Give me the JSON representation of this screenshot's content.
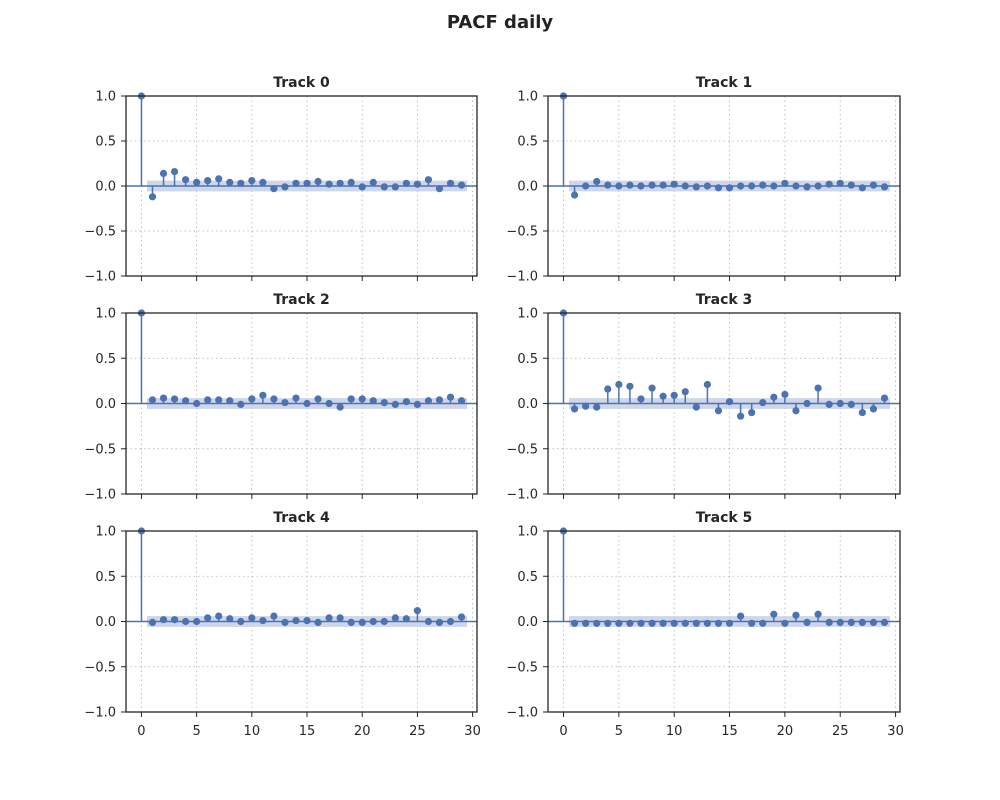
{
  "figure": {
    "title": "PACF daily"
  },
  "chart_data": [
    {
      "type": "stem",
      "title": "Track 0",
      "xlim": [
        -1.4,
        30.4
      ],
      "ylim": [
        -1.0,
        1.0
      ],
      "xticks": [
        0,
        5,
        10,
        15,
        20,
        25,
        30
      ],
      "yticks": [
        -1.0,
        -0.5,
        0.0,
        0.5,
        1.0
      ],
      "grid": true,
      "confidence_band": [
        -0.06,
        0.06
      ],
      "x": [
        0,
        1,
        2,
        3,
        4,
        5,
        6,
        7,
        8,
        9,
        10,
        11,
        12,
        13,
        14,
        15,
        16,
        17,
        18,
        19,
        20,
        21,
        22,
        23,
        24,
        25,
        26,
        27,
        28,
        29
      ],
      "y": [
        1.0,
        -0.12,
        0.14,
        0.16,
        0.07,
        0.04,
        0.06,
        0.08,
        0.04,
        0.03,
        0.06,
        0.04,
        -0.03,
        -0.01,
        0.03,
        0.03,
        0.05,
        0.02,
        0.03,
        0.04,
        -0.01,
        0.04,
        -0.01,
        -0.01,
        0.03,
        0.02,
        0.07,
        -0.03,
        0.03,
        0.01
      ]
    },
    {
      "type": "stem",
      "title": "Track 1",
      "xlim": [
        -1.4,
        30.4
      ],
      "ylim": [
        -1.0,
        1.0
      ],
      "xticks": [
        0,
        5,
        10,
        15,
        20,
        25,
        30
      ],
      "yticks": [
        -1.0,
        -0.5,
        0.0,
        0.5,
        1.0
      ],
      "grid": true,
      "confidence_band": [
        -0.06,
        0.06
      ],
      "x": [
        0,
        1,
        2,
        3,
        4,
        5,
        6,
        7,
        8,
        9,
        10,
        11,
        12,
        13,
        14,
        15,
        16,
        17,
        18,
        19,
        20,
        21,
        22,
        23,
        24,
        25,
        26,
        27,
        28,
        29
      ],
      "y": [
        1.0,
        -0.1,
        0.0,
        0.05,
        0.01,
        0.0,
        0.01,
        0.0,
        0.01,
        0.01,
        0.02,
        0.0,
        -0.01,
        0.0,
        -0.02,
        -0.02,
        0.0,
        0.0,
        0.01,
        0.0,
        0.03,
        0.0,
        -0.01,
        0.0,
        0.02,
        0.03,
        0.01,
        -0.02,
        0.01,
        -0.01
      ]
    },
    {
      "type": "stem",
      "title": "Track 2",
      "xlim": [
        -1.4,
        30.4
      ],
      "ylim": [
        -1.0,
        1.0
      ],
      "xticks": [
        0,
        5,
        10,
        15,
        20,
        25,
        30
      ],
      "yticks": [
        -1.0,
        -0.5,
        0.0,
        0.5,
        1.0
      ],
      "grid": true,
      "confidence_band": [
        -0.06,
        0.06
      ],
      "x": [
        0,
        1,
        2,
        3,
        4,
        5,
        6,
        7,
        8,
        9,
        10,
        11,
        12,
        13,
        14,
        15,
        16,
        17,
        18,
        19,
        20,
        21,
        22,
        23,
        24,
        25,
        26,
        27,
        28,
        29
      ],
      "y": [
        1.0,
        0.04,
        0.06,
        0.05,
        0.03,
        0.0,
        0.04,
        0.04,
        0.03,
        -0.01,
        0.05,
        0.09,
        0.05,
        0.01,
        0.06,
        0.0,
        0.05,
        0.0,
        -0.04,
        0.05,
        0.05,
        0.03,
        0.01,
        -0.01,
        0.02,
        -0.01,
        0.03,
        0.04,
        0.07,
        0.03
      ]
    },
    {
      "type": "stem",
      "title": "Track 3",
      "xlim": [
        -1.4,
        30.4
      ],
      "ylim": [
        -1.0,
        1.0
      ],
      "xticks": [
        0,
        5,
        10,
        15,
        20,
        25,
        30
      ],
      "yticks": [
        -1.0,
        -0.5,
        0.0,
        0.5,
        1.0
      ],
      "grid": true,
      "confidence_band": [
        -0.06,
        0.06
      ],
      "x": [
        0,
        1,
        2,
        3,
        4,
        5,
        6,
        7,
        8,
        9,
        10,
        11,
        12,
        13,
        14,
        15,
        16,
        17,
        18,
        19,
        20,
        21,
        22,
        23,
        24,
        25,
        26,
        27,
        28,
        29
      ],
      "y": [
        1.0,
        -0.06,
        -0.03,
        -0.04,
        0.16,
        0.21,
        0.19,
        0.05,
        0.17,
        0.08,
        0.09,
        0.13,
        -0.04,
        0.21,
        -0.08,
        0.02,
        -0.14,
        -0.1,
        0.01,
        0.07,
        0.1,
        -0.08,
        0.0,
        0.17,
        -0.01,
        0.0,
        -0.01,
        -0.1,
        -0.06,
        0.06
      ]
    },
    {
      "type": "stem",
      "title": "Track 4",
      "xlim": [
        -1.4,
        30.4
      ],
      "ylim": [
        -1.0,
        1.0
      ],
      "xticks": [
        0,
        5,
        10,
        15,
        20,
        25,
        30
      ],
      "yticks": [
        -1.0,
        -0.5,
        0.0,
        0.5,
        1.0
      ],
      "grid": true,
      "confidence_band": [
        -0.06,
        0.06
      ],
      "x": [
        0,
        1,
        2,
        3,
        4,
        5,
        6,
        7,
        8,
        9,
        10,
        11,
        12,
        13,
        14,
        15,
        16,
        17,
        18,
        19,
        20,
        21,
        22,
        23,
        24,
        25,
        26,
        27,
        28,
        29
      ],
      "y": [
        1.0,
        -0.01,
        0.02,
        0.02,
        0.0,
        0.0,
        0.04,
        0.06,
        0.03,
        0.0,
        0.04,
        0.01,
        0.06,
        -0.01,
        0.01,
        0.01,
        -0.01,
        0.04,
        0.04,
        -0.01,
        -0.01,
        0.0,
        0.0,
        0.04,
        0.03,
        0.12,
        0.0,
        -0.01,
        0.0,
        0.05
      ]
    },
    {
      "type": "stem",
      "title": "Track 5",
      "xlim": [
        -1.4,
        30.4
      ],
      "ylim": [
        -1.0,
        1.0
      ],
      "xticks": [
        0,
        5,
        10,
        15,
        20,
        25,
        30
      ],
      "yticks": [
        -1.0,
        -0.5,
        0.0,
        0.5,
        1.0
      ],
      "grid": true,
      "confidence_band": [
        -0.06,
        0.06
      ],
      "x": [
        0,
        1,
        2,
        3,
        4,
        5,
        6,
        7,
        8,
        9,
        10,
        11,
        12,
        13,
        14,
        15,
        16,
        17,
        18,
        19,
        20,
        21,
        22,
        23,
        24,
        25,
        26,
        27,
        28,
        29
      ],
      "y": [
        1.0,
        -0.02,
        -0.02,
        -0.02,
        -0.02,
        -0.02,
        -0.02,
        -0.02,
        -0.02,
        -0.02,
        -0.02,
        -0.02,
        -0.02,
        -0.02,
        -0.02,
        -0.02,
        0.06,
        -0.02,
        -0.02,
        0.08,
        -0.02,
        0.07,
        -0.01,
        0.08,
        -0.01,
        -0.01,
        -0.01,
        -0.01,
        -0.01,
        -0.01
      ]
    }
  ],
  "colors": {
    "stem": "#4c72b0",
    "band": "#c5d0e6",
    "axis": "#262626",
    "grid": "#b0b0b0"
  }
}
